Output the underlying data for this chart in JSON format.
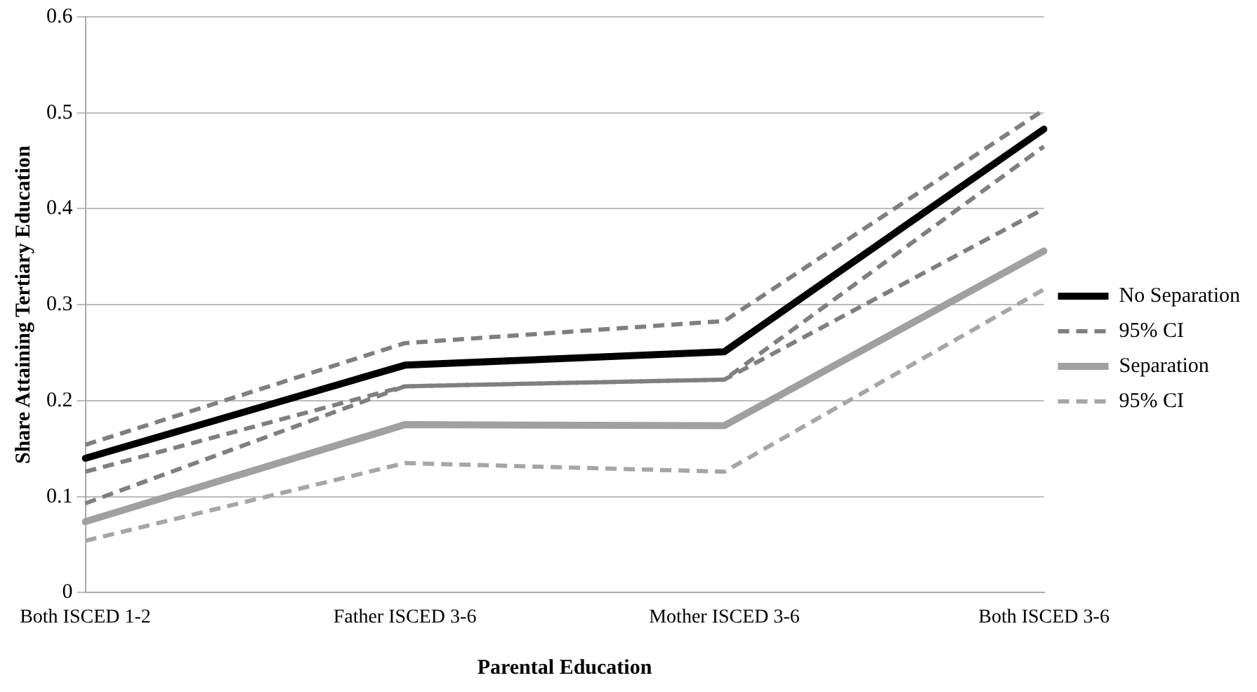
{
  "chart_data": {
    "type": "line",
    "xlabel": "Parental Education",
    "ylabel": "Share Attaining Tertiary Education",
    "categories": [
      "Both ISCED 1-2",
      "Father ISCED 3-6",
      "Mother ISCED 3-6",
      "Both ISCED 3-6"
    ],
    "series": [
      {
        "name": "No Separation",
        "color": "#000000",
        "values": [
          0.14,
          0.237,
          0.251,
          0.483
        ]
      },
      {
        "name": "95% CI",
        "color": "#7f7f7f",
        "line_style": "dashed",
        "values": [
          0.154,
          0.26,
          0.283,
          0.503
        ]
      },
      {
        "color": "#7f7f7f",
        "line_style": "dashed",
        "values": [
          0.126,
          0.215,
          0.222,
          0.465
        ]
      },
      {
        "name": "Separation",
        "color": "#a0a0a0",
        "values": [
          0.074,
          0.175,
          0.174,
          0.356
        ]
      },
      {
        "name": "95% CI",
        "color": "#a6a6a6",
        "line_style": "dashed",
        "values": [
          0.054,
          0.135,
          0.126,
          0.316
        ]
      },
      {
        "color": "#7f7f7f",
        "line_style": "dashed",
        "values": [
          0.093,
          0.215,
          0.222,
          0.4
        ]
      }
    ],
    "ylim": [
      0,
      0.6
    ],
    "yticks": [
      0,
      0.1,
      0.2,
      0.3,
      0.4,
      0.5,
      0.6
    ],
    "grid": "y",
    "legend": "right",
    "marker": "none",
    "line_style": "solid"
  }
}
